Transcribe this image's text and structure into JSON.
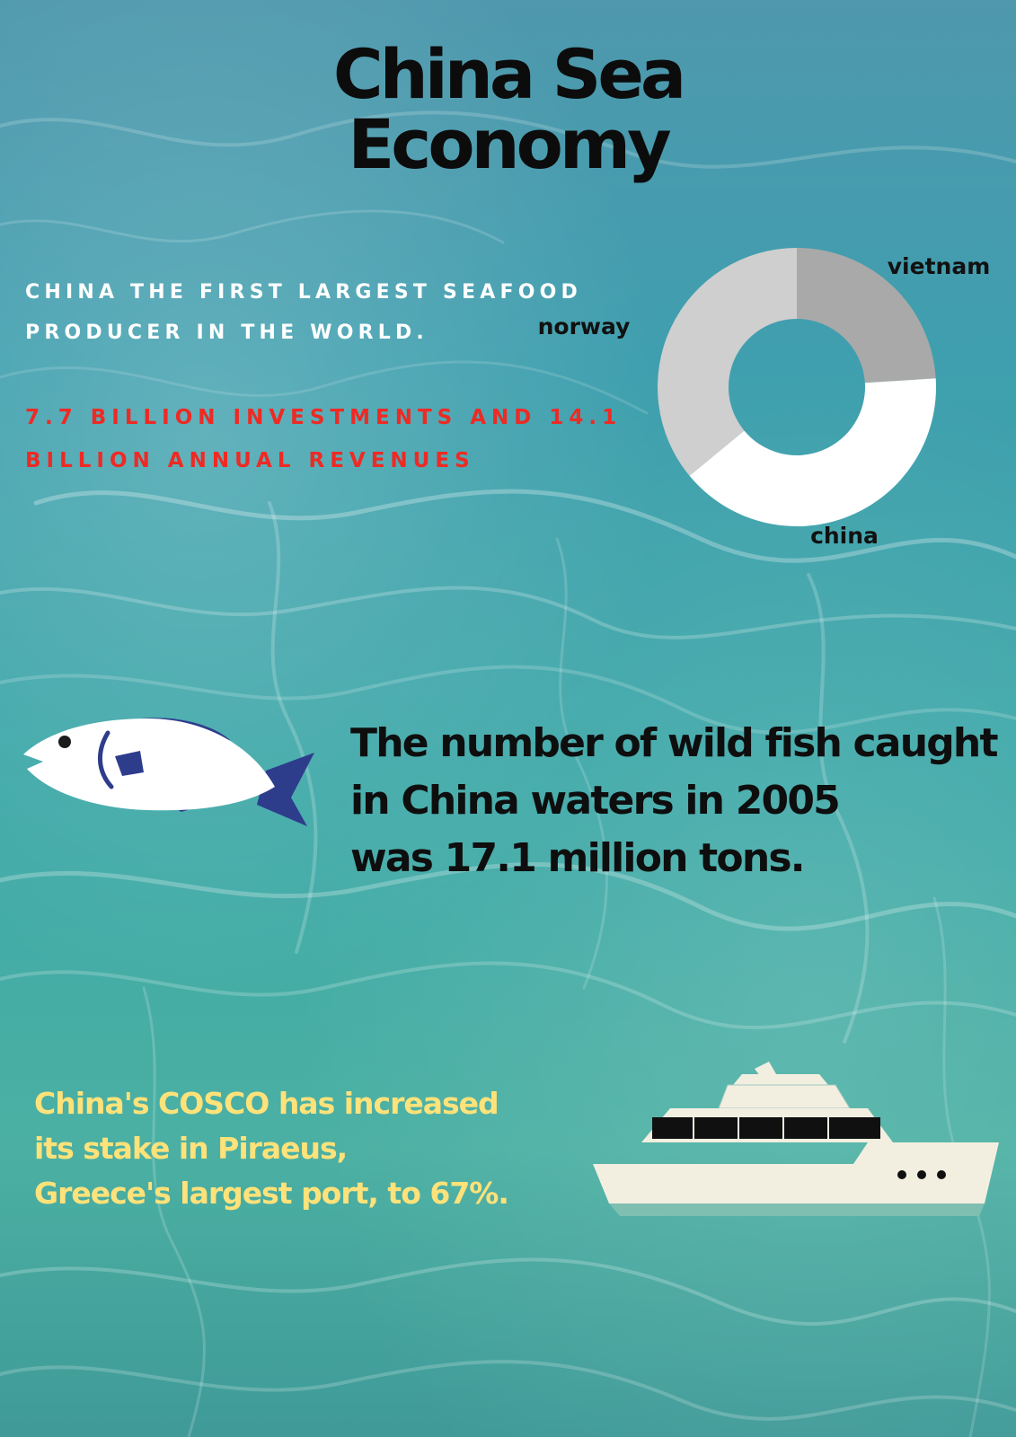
{
  "title": {
    "line1": "China Sea",
    "line2": "Economy"
  },
  "headline_seafood": "China the first largest seafood producer in the world.",
  "headline_investment": "7.7 BILLION INVESTMENTS AND 14.1 BILLION ANNUAL REVENUES",
  "fish_fact": "The number of wild fish caught\nin China waters in 2005\n was 17.1 million tons.",
  "port_fact": "China's COSCO has increased\nits stake in Piraeus,\n Greece's largest port, to 67%.",
  "colors": {
    "water": "#3fa9a8",
    "red_text": "#ee2a24",
    "yellow_text": "#ffe27a",
    "china": "#ffffff",
    "vietnam": "#a9a9a9",
    "norway": "#cfcfcf",
    "fish_body": "#ffffff",
    "fish_fin": "#2e3c8c",
    "ship_hull": "#f2efe1",
    "ship_trim": "#7fbfb1"
  },
  "icons": [
    "fish-illustration",
    "ship-illustration"
  ],
  "chart_data": {
    "type": "pie",
    "variant": "donut",
    "categories": [
      "vietnam",
      "china",
      "norway"
    ],
    "values": [
      24,
      40,
      36
    ],
    "unit": "percent (estimated share)",
    "legend": "none",
    "labels_placement": "outside-slices"
  }
}
